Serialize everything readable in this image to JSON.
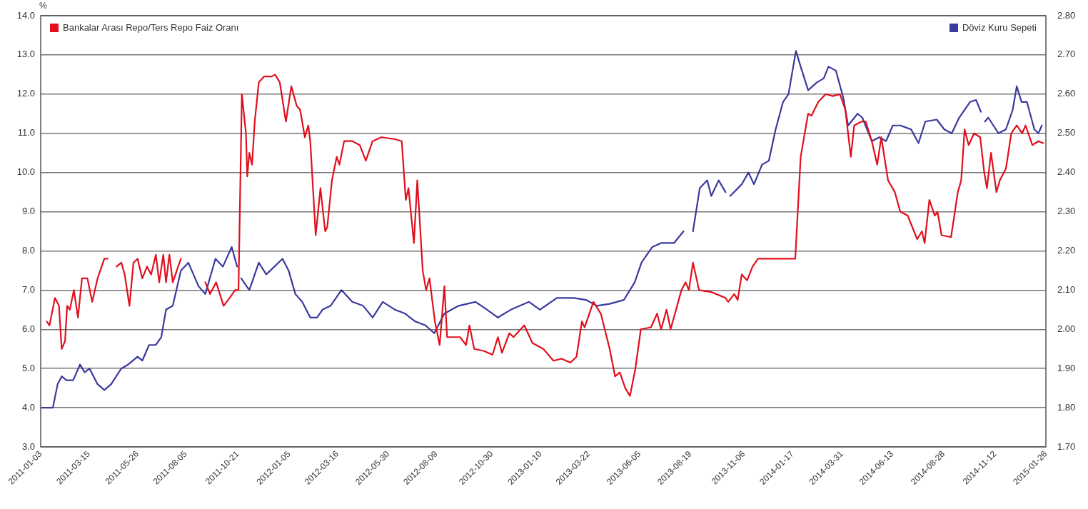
{
  "chart_data": {
    "type": "line",
    "ylabel": "%",
    "legend": "top",
    "grid": "y",
    "marker": "none",
    "xlim": [
      "2011-01-03",
      "2015-01-26"
    ],
    "xticks": [
      "2011-01-03",
      "2011-03-15",
      "2011-05-26",
      "2011-08-05",
      "2011-10-21",
      "2012-01-05",
      "2012-03-16",
      "2012-05-30",
      "2012-08-09",
      "2012-10-30",
      "2013-01-10",
      "2013-03-22",
      "2013-06-05",
      "2013-08-19",
      "2013-11-06",
      "2014-01-17",
      "2014-03-31",
      "2014-06-13",
      "2014-08-28",
      "2014-11-12",
      "2015-01-26"
    ],
    "ylim": [
      3,
      14
    ],
    "yticks": [
      {
        "value": 3,
        "label": "3.0"
      },
      {
        "value": 4,
        "label": "4.0"
      },
      {
        "value": 5,
        "label": "5.0"
      },
      {
        "value": 6,
        "label": "6.0"
      },
      {
        "value": 7,
        "label": "7.0"
      },
      {
        "value": 8,
        "label": "8.0"
      },
      {
        "value": 9,
        "label": "9.0"
      },
      {
        "value": 10,
        "label": "10.0"
      },
      {
        "value": 11,
        "label": "11.0"
      },
      {
        "value": 12,
        "label": "12.0"
      },
      {
        "value": 13,
        "label": "13.0"
      },
      {
        "value": 14,
        "label": "14.0"
      }
    ],
    "y2lim": [
      1.7,
      2.8
    ],
    "y2ticks": [
      {
        "value": 1.7,
        "label": "1.70"
      },
      {
        "value": 1.8,
        "label": "1.80"
      },
      {
        "value": 1.9,
        "label": "1.90"
      },
      {
        "value": 2,
        "label": "2.00"
      },
      {
        "value": 2.1,
        "label": "2.10"
      },
      {
        "value": 2.2,
        "label": "2.20"
      },
      {
        "value": 2.3,
        "label": "2.30"
      },
      {
        "value": 2.4,
        "label": "2.40"
      },
      {
        "value": 2.5,
        "label": "2.50"
      },
      {
        "value": 2.6,
        "label": "2.60"
      },
      {
        "value": 2.7,
        "label": "2.70"
      },
      {
        "value": 2.8,
        "label": "2.80"
      }
    ],
    "series": [
      {
        "name": "Bankalar Arası Repo/Ters Repo Faiz Oranı",
        "color": "#e0101e",
        "x": [
          "2011-01-12",
          "2011-01-16",
          "2011-01-24",
          "2011-01-30",
          "2011-02-03",
          "2011-02-08",
          "2011-02-11",
          "2011-02-15",
          "2011-02-21",
          "2011-02-27",
          "2011-03-05",
          "2011-03-13",
          "2011-03-20",
          "2011-03-28",
          "2011-04-07",
          "2011-04-12",
          "2011-04-20",
          "2011-04-25",
          "2011-05-02",
          "2011-05-07",
          "2011-05-14",
          "2011-05-20",
          "2011-05-26",
          "2011-06-02",
          "2011-06-09",
          "2011-06-15",
          "2011-06-22",
          "2011-06-27",
          "2011-07-03",
          "2011-07-07",
          "2011-07-12",
          "2011-07-17",
          "2011-07-29",
          "2011-08-15",
          "2011-09-03",
          "2011-09-10",
          "2011-09-19",
          "2011-09-30",
          "2011-10-09",
          "2011-10-17",
          "2011-10-22",
          "2011-10-27",
          "2011-11-02",
          "2011-11-04",
          "2011-11-07",
          "2011-11-11",
          "2011-11-15",
          "2011-11-21",
          "2011-11-29",
          "2011-12-10",
          "2011-12-15",
          "2011-12-22",
          "2011-12-31",
          "2012-01-08",
          "2012-01-16",
          "2012-01-21",
          "2012-01-28",
          "2012-02-02",
          "2012-02-05",
          "2012-02-13",
          "2012-02-20",
          "2012-02-27",
          "2012-03-01",
          "2012-03-08",
          "2012-03-15",
          "2012-03-19",
          "2012-03-26",
          "2012-04-07",
          "2012-04-18",
          "2012-04-27",
          "2012-05-07",
          "2012-05-20",
          "2012-06-09",
          "2012-06-19",
          "2012-06-25",
          "2012-06-29",
          "2012-07-07",
          "2012-07-12",
          "2012-07-20",
          "2012-07-25",
          "2012-07-30",
          "2012-08-07",
          "2012-08-14",
          "2012-08-21",
          "2012-08-25",
          "2012-09-13",
          "2012-09-22",
          "2012-09-27",
          "2012-10-04",
          "2012-10-18",
          "2012-10-31",
          "2012-11-08",
          "2012-11-14",
          "2012-11-25",
          "2012-12-01",
          "2012-12-17",
          "2012-12-29",
          "2013-01-14",
          "2013-01-29",
          "2013-02-10",
          "2013-02-23",
          "2013-03-04",
          "2013-03-12",
          "2013-03-16",
          "2013-03-29",
          "2013-04-09",
          "2013-04-22",
          "2013-04-30",
          "2013-05-07",
          "2013-05-15",
          "2013-05-22",
          "2013-05-30",
          "2013-06-07",
          "2013-06-22",
          "2013-07-01",
          "2013-07-07",
          "2013-07-15",
          "2013-07-21",
          "2013-08-06",
          "2013-08-12",
          "2013-08-17",
          "2013-08-23",
          "2013-09-01",
          "2013-09-19",
          "2013-10-10",
          "2013-10-14",
          "2013-10-23",
          "2013-10-28",
          "2013-11-03",
          "2013-11-11",
          "2013-11-19",
          "2013-11-27",
          "2014-01-21",
          "2014-01-29",
          "2014-02-09",
          "2014-02-14",
          "2014-02-24",
          "2014-03-07",
          "2014-03-17",
          "2014-03-28",
          "2014-04-05",
          "2014-04-13",
          "2014-04-18",
          "2014-04-29",
          "2014-05-05",
          "2014-05-14",
          "2014-05-22",
          "2014-05-28",
          "2014-06-07",
          "2014-06-17",
          "2014-06-25",
          "2014-07-06",
          "2014-07-20",
          "2014-07-27",
          "2014-07-31",
          "2014-08-07",
          "2014-08-15",
          "2014-08-19",
          "2014-08-25",
          "2014-09-08",
          "2014-09-18",
          "2014-09-23",
          "2014-09-28",
          "2014-10-04",
          "2014-10-12",
          "2014-10-21",
          "2014-10-27",
          "2014-10-31",
          "2014-11-06",
          "2014-11-14",
          "2014-11-19",
          "2014-11-28",
          "2014-12-06",
          "2014-12-14",
          "2014-12-22",
          "2014-12-27",
          "2015-01-06",
          "2015-01-15",
          "2015-01-22"
        ],
        "values": [
          6.2,
          6.1,
          6.8,
          6.6,
          5.5,
          5.7,
          6.6,
          6.5,
          7.0,
          6.3,
          7.3,
          7.3,
          6.7,
          7.3,
          7.8,
          7.8,
          null,
          7.6,
          7.7,
          7.4,
          6.6,
          7.7,
          7.8,
          7.3,
          7.6,
          7.4,
          7.9,
          7.2,
          7.9,
          7.2,
          7.9,
          7.2,
          7.8,
          null,
          7.2,
          6.9,
          7.2,
          6.6,
          6.8,
          7.0,
          7.0,
          12.0,
          11.0,
          9.9,
          10.5,
          10.2,
          11.3,
          12.3,
          12.45,
          12.45,
          12.5,
          12.3,
          11.3,
          12.2,
          11.7,
          11.6,
          10.9,
          11.2,
          10.8,
          8.4,
          9.6,
          8.5,
          8.6,
          9.8,
          10.4,
          10.2,
          10.8,
          10.8,
          10.7,
          10.3,
          10.8,
          10.9,
          10.85,
          10.8,
          9.3,
          9.6,
          8.2,
          9.8,
          7.5,
          7.0,
          7.3,
          6.2,
          5.6,
          7.1,
          5.8,
          5.8,
          5.6,
          6.1,
          5.5,
          5.45,
          5.35,
          5.8,
          5.4,
          5.9,
          5.8,
          6.1,
          5.65,
          5.5,
          5.2,
          5.25,
          5.15,
          5.3,
          6.2,
          6.05,
          6.7,
          6.4,
          5.5,
          4.8,
          4.9,
          4.5,
          4.3,
          5.0,
          6.0,
          6.05,
          6.4,
          6.0,
          6.5,
          6.0,
          7.0,
          7.2,
          7.0,
          7.7,
          7.0,
          6.95,
          6.8,
          6.7,
          6.9,
          6.75,
          7.4,
          7.25,
          7.6,
          7.8,
          7.8,
          10.4,
          11.5,
          11.45,
          11.8,
          12.0,
          11.95,
          12.0,
          11.6,
          10.4,
          11.2,
          11.3,
          11.3,
          10.8,
          10.2,
          10.9,
          9.8,
          9.5,
          9.0,
          8.9,
          8.3,
          8.5,
          8.2,
          9.3,
          8.9,
          9.0,
          8.4,
          8.35,
          9.5,
          9.8,
          11.1,
          10.7,
          11.0,
          10.9,
          10.0,
          9.6,
          10.5,
          9.5,
          9.8,
          10.1,
          11.0,
          11.2,
          11.0,
          11.2,
          10.7,
          10.8,
          10.75
        ]
      },
      {
        "name": "Döviz Kuru Sepeti",
        "color": "#3a3a9e",
        "axis": "y2",
        "x": [
          "2011-01-03",
          "2011-01-16",
          "2011-01-21",
          "2011-01-28",
          "2011-02-03",
          "2011-02-10",
          "2011-02-20",
          "2011-03-02",
          "2011-03-09",
          "2011-03-16",
          "2011-03-28",
          "2011-04-07",
          "2011-04-17",
          "2011-05-02",
          "2011-05-12",
          "2011-05-26",
          "2011-06-02",
          "2011-06-12",
          "2011-06-22",
          "2011-06-30",
          "2011-07-07",
          "2011-07-17",
          "2011-07-29",
          "2011-08-09",
          "2011-08-24",
          "2011-09-03",
          "2011-09-18",
          "2011-09-29",
          "2011-10-12",
          "2011-10-20",
          "2011-10-23",
          "2011-10-26",
          "2011-11-07",
          "2011-11-21",
          "2011-12-02",
          "2011-12-26",
          "2012-01-04",
          "2012-01-14",
          "2012-01-24",
          "2012-02-05",
          "2012-02-15",
          "2012-02-23",
          "2012-03-06",
          "2012-03-22",
          "2012-04-07",
          "2012-04-23",
          "2012-05-07",
          "2012-05-22",
          "2012-06-09",
          "2012-06-24",
          "2012-07-09",
          "2012-07-24",
          "2012-08-06",
          "2012-08-21",
          "2012-09-11",
          "2012-10-06",
          "2012-10-23",
          "2012-11-08",
          "2012-11-27",
          "2012-12-24",
          "2013-01-09",
          "2013-02-03",
          "2013-02-28",
          "2013-03-18",
          "2013-04-03",
          "2013-04-22",
          "2013-05-13",
          "2013-05-29",
          "2013-06-08",
          "2013-06-24",
          "2013-07-07",
          "2013-07-26",
          "2013-08-09",
          "2013-08-13",
          "2013-08-23",
          "2013-09-02",
          "2013-09-13",
          "2013-09-19",
          "2013-09-30",
          "2013-10-10",
          "2013-10-14",
          "2013-10-17",
          "2013-11-03",
          "2013-11-13",
          "2013-11-21",
          "2013-12-03",
          "2013-12-13",
          "2013-12-23",
          "2014-01-03",
          "2014-01-11",
          "2014-01-22",
          "2014-01-29",
          "2014-02-09",
          "2014-02-22",
          "2014-03-04",
          "2014-03-11",
          "2014-03-22",
          "2014-04-02",
          "2014-04-09",
          "2014-04-23",
          "2014-04-30",
          "2014-05-14",
          "2014-05-25",
          "2014-06-04",
          "2014-06-14",
          "2014-06-25",
          "2014-07-11",
          "2014-07-22",
          "2014-08-01",
          "2014-08-18",
          "2014-08-29",
          "2014-09-09",
          "2014-09-20",
          "2014-10-06",
          "2014-10-15",
          "2014-10-22",
          "2014-10-25",
          "2014-10-28",
          "2014-11-02",
          "2014-11-17",
          "2014-11-28",
          "2014-12-08",
          "2014-12-14",
          "2014-12-21",
          "2014-12-29",
          "2015-01-09",
          "2015-01-15",
          "2015-01-20"
        ],
        "values": [
          1.8,
          1.8,
          1.8,
          1.86,
          1.88,
          1.87,
          1.87,
          1.91,
          1.89,
          1.9,
          1.86,
          1.845,
          1.86,
          1.9,
          1.91,
          1.93,
          1.92,
          1.96,
          1.96,
          1.98,
          2.05,
          2.06,
          2.15,
          2.17,
          2.11,
          2.09,
          2.18,
          2.16,
          2.21,
          2.16,
          null,
          2.13,
          2.1,
          2.17,
          2.14,
          2.18,
          2.15,
          2.09,
          2.07,
          2.03,
          2.03,
          2.05,
          2.06,
          2.1,
          2.07,
          2.06,
          2.03,
          2.07,
          2.05,
          2.04,
          2.02,
          2.01,
          1.99,
          2.04,
          2.06,
          2.07,
          2.05,
          2.03,
          2.05,
          2.07,
          2.05,
          2.08,
          2.08,
          2.075,
          2.06,
          2.065,
          2.075,
          2.12,
          2.17,
          2.21,
          2.22,
          2.22,
          2.25,
          null,
          2.25,
          2.36,
          2.38,
          2.34,
          2.38,
          2.35,
          null,
          2.34,
          2.37,
          2.4,
          2.37,
          2.42,
          2.43,
          2.51,
          2.58,
          2.6,
          2.71,
          2.67,
          2.61,
          2.63,
          2.64,
          2.67,
          2.66,
          2.59,
          2.52,
          2.55,
          2.54,
          2.48,
          2.49,
          2.48,
          2.52,
          2.52,
          2.51,
          2.475,
          2.53,
          2.535,
          2.51,
          2.5,
          2.54,
          2.58,
          2.585,
          2.555,
          null,
          2.53,
          2.54,
          2.5,
          2.51,
          2.56,
          2.62,
          2.58,
          2.58,
          2.51,
          2.5,
          2.52
        ]
      }
    ]
  }
}
